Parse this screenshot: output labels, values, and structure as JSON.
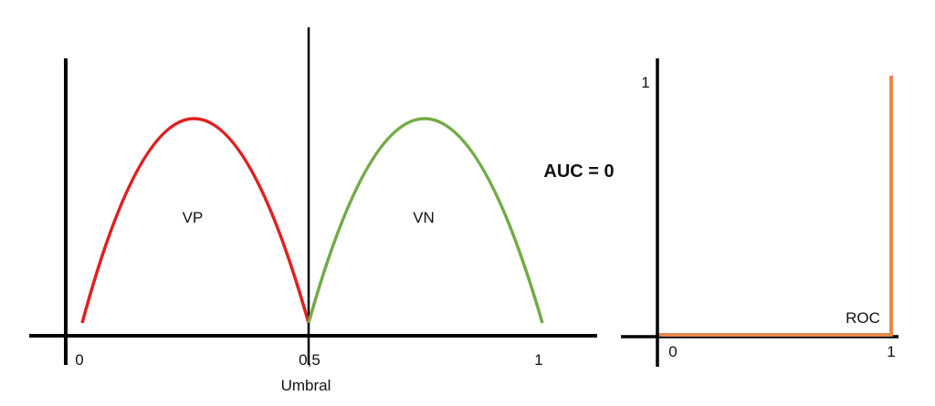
{
  "left_plot": {
    "x_ticks": [
      "0",
      "0,5",
      "1"
    ],
    "x_title": "Umbral",
    "regions": [
      {
        "label": "VP",
        "color": "#e02020"
      },
      {
        "label": "VN",
        "color": "#72ab45"
      }
    ]
  },
  "annotation": "AUC = 0",
  "right_plot": {
    "x_ticks": [
      "0",
      "1"
    ],
    "y_ticks": [
      "1"
    ],
    "curve_label": "ROC",
    "curve_color": "#e8894a",
    "curve_points": [
      [
        0,
        0
      ],
      [
        1,
        0
      ],
      [
        1,
        1
      ]
    ]
  }
}
